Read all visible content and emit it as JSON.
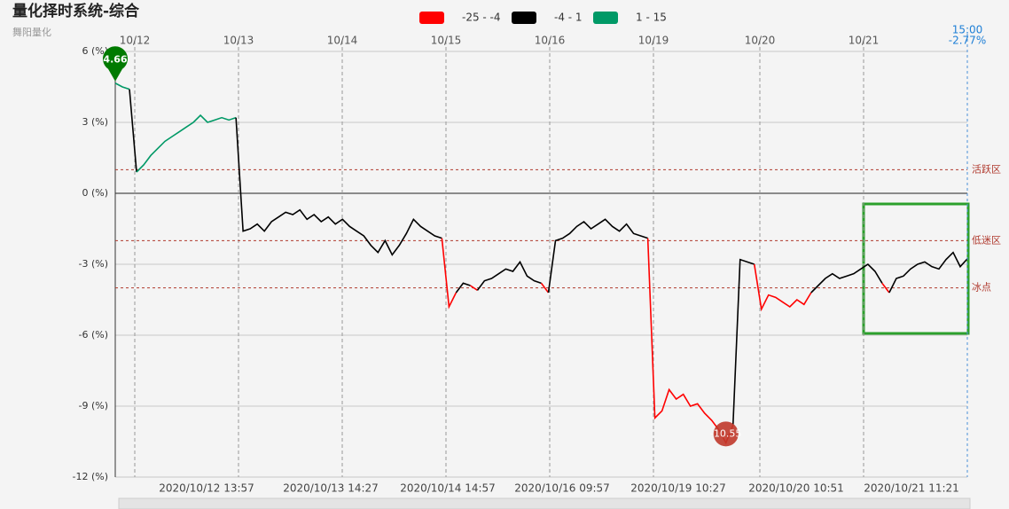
{
  "chart_data": {
    "type": "line",
    "title": "量化择时系统-综合",
    "subtitle": "舞阳量化",
    "legend": [
      {
        "name": "-25 - -4",
        "color": "#ff0000",
        "range": [
          -25,
          -4
        ]
      },
      {
        "name": "-4 - 1",
        "color": "#000000",
        "range": [
          -4,
          1
        ]
      },
      {
        "name": "1 - 15",
        "color": "#009966",
        "range": [
          1,
          15
        ]
      }
    ],
    "ylim": [
      -12,
      6
    ],
    "yticks": [
      {
        "value": 6,
        "label": "6 (%)"
      },
      {
        "value": 3,
        "label": "3 (%)"
      },
      {
        "value": 0,
        "label": "0 (%)"
      },
      {
        "value": -3,
        "label": "-3 (%)"
      },
      {
        "value": -6,
        "label": "-6 (%)"
      },
      {
        "value": -9,
        "label": "-9 (%)"
      },
      {
        "value": -12,
        "label": "-12 (%)"
      }
    ],
    "day_labels": [
      "10/12",
      "10/13",
      "10/14",
      "10/15",
      "10/16",
      "10/19",
      "10/20",
      "10/21"
    ],
    "time_labels": [
      "2020/10/12 13:57",
      "2020/10/13 14:27",
      "2020/10/14 14:57",
      "2020/10/16 09:57",
      "2020/10/19 10:27",
      "2020/10/20 10:51",
      "2020/10/21 11:21"
    ],
    "reference_lines": [
      {
        "value": 1,
        "label": "活跃区"
      },
      {
        "value": -2,
        "label": "低迷区"
      },
      {
        "value": -4,
        "label": "冰点"
      }
    ],
    "values": [
      4.66,
      4.5,
      4.4,
      0.9,
      1.2,
      1.6,
      1.9,
      2.2,
      2.4,
      2.6,
      2.8,
      3.0,
      3.3,
      3.0,
      3.1,
      3.2,
      3.1,
      3.2,
      -1.6,
      -1.5,
      -1.3,
      -1.6,
      -1.2,
      -1.0,
      -0.8,
      -0.9,
      -0.7,
      -1.1,
      -0.9,
      -1.2,
      -1.0,
      -1.3,
      -1.1,
      -1.4,
      -1.6,
      -1.8,
      -2.2,
      -2.5,
      -2.0,
      -2.6,
      -2.2,
      -1.7,
      -1.1,
      -1.4,
      -1.6,
      -1.8,
      -1.9,
      -4.8,
      -4.2,
      -3.8,
      -3.9,
      -4.1,
      -3.7,
      -3.6,
      -3.4,
      -3.2,
      -3.3,
      -2.9,
      -3.5,
      -3.7,
      -3.8,
      -4.2,
      -2.0,
      -1.9,
      -1.7,
      -1.4,
      -1.2,
      -1.5,
      -1.3,
      -1.1,
      -1.4,
      -1.6,
      -1.3,
      -1.7,
      -1.8,
      -1.9,
      -9.5,
      -9.2,
      -8.3,
      -8.7,
      -8.5,
      -9.0,
      -8.9,
      -9.3,
      -9.6,
      -10.0,
      -10.55,
      -9.8,
      -2.8,
      -2.9,
      -3.0,
      -4.9,
      -4.3,
      -4.4,
      -4.6,
      -4.8,
      -4.5,
      -4.7,
      -4.2,
      -3.9,
      -3.6,
      -3.4,
      -3.6,
      -3.5,
      -3.4,
      -3.2,
      -3.0,
      -3.3,
      -3.8,
      -4.2,
      -3.6,
      -3.5,
      -3.2,
      -3.0,
      -2.9,
      -3.1,
      -3.2,
      -2.8,
      -2.5,
      -3.1,
      -2.77
    ],
    "markers": [
      {
        "value": 4.66,
        "color": "#007a00"
      },
      {
        "value": -10.55,
        "color": "#c0392b"
      }
    ],
    "last_time": "15:00",
    "last_value": {
      "value": -2.77,
      "label": "-2.77%"
    }
  }
}
